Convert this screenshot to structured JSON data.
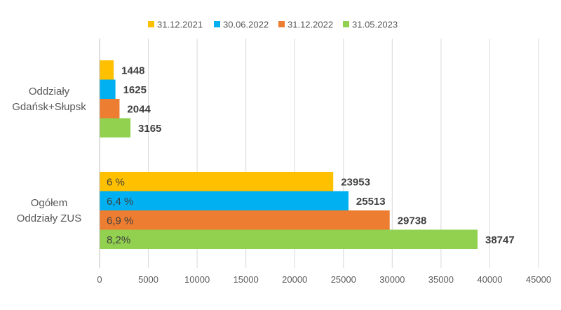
{
  "chart_data": {
    "type": "bar",
    "orientation": "horizontal",
    "categories": [
      "Oddziały Gdańsk+Słupsk",
      "Ogółem Oddziały ZUS"
    ],
    "category_lines": [
      [
        "Oddziały",
        "Gdańsk+Słupsk"
      ],
      [
        "Ogółem",
        "Oddziały ZUS"
      ]
    ],
    "series": [
      {
        "name": "31.12.2021",
        "color": "#FFC000",
        "values": [
          1448,
          23953
        ],
        "share_labels": [
          "",
          "6 %"
        ]
      },
      {
        "name": "30.06.2022",
        "color": "#00B0F0",
        "values": [
          1625,
          25513
        ],
        "share_labels": [
          "",
          "6,4 %"
        ]
      },
      {
        "name": "31.12.2022",
        "color": "#ED7D31",
        "values": [
          2044,
          29738
        ],
        "share_labels": [
          "",
          "6,9 %"
        ]
      },
      {
        "name": "31.05.2023",
        "color": "#92D050",
        "values": [
          3165,
          38747
        ],
        "share_labels": [
          "",
          "8,2%"
        ]
      }
    ],
    "xlim": [
      0,
      45000
    ],
    "xticks": [
      0,
      5000,
      10000,
      15000,
      20000,
      25000,
      30000,
      35000,
      40000,
      45000
    ],
    "grid": true,
    "legend_position": "top",
    "title": "",
    "xlabel": "",
    "ylabel": ""
  }
}
